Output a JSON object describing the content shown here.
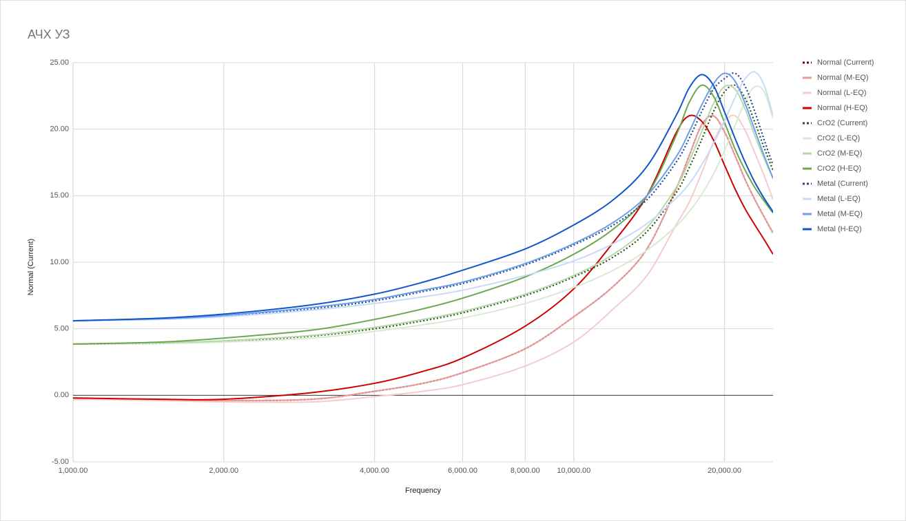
{
  "chart_data": {
    "type": "line",
    "title": "АЧХ УЗ",
    "x_label": "Frequency",
    "y_label": "Normal (Current)",
    "x_scale": "log",
    "xlim": [
      1000,
      25000
    ],
    "ylim": [
      -5,
      25
    ],
    "xticks": [
      {
        "value": 1000,
        "label": "1,000.00"
      },
      {
        "value": 2000,
        "label": "2,000.00"
      },
      {
        "value": 4000,
        "label": "4,000.00"
      },
      {
        "value": 6000,
        "label": "6,000.00"
      },
      {
        "value": 8000,
        "label": "8,000.00"
      },
      {
        "value": 10000,
        "label": "10,000.00"
      },
      {
        "value": 20000,
        "label": "20,000.00"
      }
    ],
    "yticks": [
      {
        "value": -5,
        "label": "-5.00"
      },
      {
        "value": 0,
        "label": "0.00"
      },
      {
        "value": 5,
        "label": "5.00"
      },
      {
        "value": 10,
        "label": "10.00"
      },
      {
        "value": 15,
        "label": "15.00"
      },
      {
        "value": 20,
        "label": "20.00"
      },
      {
        "value": 25,
        "label": "25.00"
      }
    ],
    "grid": true,
    "legend": "right",
    "x": [
      1000,
      1500,
      2000,
      3000,
      4000,
      5000,
      6000,
      8000,
      10000,
      12000,
      14000,
      16000,
      17000,
      18000,
      19000,
      20000,
      21000,
      22000,
      23000,
      24000,
      25000
    ],
    "series": [
      {
        "name": "Normal (Current)",
        "color": "#660000",
        "dash": "dotted",
        "values": [
          -0.3,
          -0.35,
          -0.4,
          -0.3,
          0.3,
          0.9,
          1.7,
          3.5,
          5.9,
          8.2,
          11,
          15.5,
          18,
          20.3,
          21,
          19.8,
          18,
          16.2,
          14.7,
          13.4,
          12.2
        ]
      },
      {
        "name": "Normal (M-EQ)",
        "color": "#ea9999",
        "dash": "solid",
        "values": [
          -0.3,
          -0.35,
          -0.4,
          -0.3,
          0.3,
          0.9,
          1.7,
          3.5,
          5.9,
          8.2,
          11,
          15.5,
          18,
          20.3,
          21,
          19.8,
          18,
          16.2,
          14.7,
          13.4,
          12.2
        ]
      },
      {
        "name": "Normal (L-EQ)",
        "color": "#f4cccc",
        "dash": "solid",
        "values": [
          -0.3,
          -0.4,
          -0.5,
          -0.5,
          -0.1,
          0.3,
          0.8,
          2.2,
          4.0,
          6.5,
          9,
          12.8,
          14.5,
          16.7,
          19,
          20.6,
          21,
          19.9,
          18.2,
          16.5,
          14.7
        ]
      },
      {
        "name": "Normal (H-EQ)",
        "color": "#cc0000",
        "dash": "solid",
        "values": [
          -0.2,
          -0.3,
          -0.3,
          0.2,
          0.9,
          1.8,
          2.8,
          5.2,
          8.0,
          11.5,
          15,
          19.7,
          21,
          20.6,
          19.2,
          17.3,
          15.5,
          14,
          12.8,
          11.7,
          10.6
        ]
      },
      {
        "name": "CrO2 (Current)",
        "color": "#274e13",
        "dash": "dotted",
        "values": [
          3.85,
          3.9,
          4.05,
          4.45,
          5.0,
          5.6,
          6.2,
          7.5,
          8.9,
          10.4,
          12.3,
          15.2,
          17.1,
          19.2,
          21.3,
          22.8,
          23.3,
          22.3,
          20.5,
          18.6,
          16.9
        ]
      },
      {
        "name": "CrO2 (L-EQ)",
        "color": "#d9ead3",
        "dash": "solid",
        "values": [
          3.85,
          3.9,
          4.0,
          4.3,
          4.8,
          5.3,
          5.8,
          6.9,
          8.1,
          9.4,
          10.9,
          12.7,
          13.8,
          15.1,
          16.6,
          18.4,
          20.3,
          22.1,
          23.2,
          22.8,
          20.8
        ]
      },
      {
        "name": "CrO2 (M-EQ)",
        "color": "#b6d7a8",
        "dash": "solid",
        "values": [
          3.85,
          3.95,
          4.1,
          4.5,
          5.1,
          5.7,
          6.3,
          7.6,
          9.0,
          10.6,
          12.6,
          15.6,
          17.6,
          19.8,
          21.9,
          23.2,
          23,
          21.5,
          19.5,
          17.8,
          16.3
        ]
      },
      {
        "name": "CrO2 (H-EQ)",
        "color": "#6aa84f",
        "dash": "solid",
        "values": [
          3.85,
          4.0,
          4.3,
          4.9,
          5.7,
          6.5,
          7.3,
          8.9,
          10.6,
          12.5,
          15,
          19.5,
          22,
          23.3,
          22.5,
          20.5,
          18.5,
          16.9,
          15.6,
          14.6,
          13.7
        ]
      },
      {
        "name": "Metal (Current)",
        "color": "#1c4587",
        "dash": "dotted",
        "values": [
          5.6,
          5.75,
          5.95,
          6.5,
          7.1,
          7.8,
          8.4,
          9.8,
          11.3,
          12.8,
          14.7,
          17.5,
          19.3,
          21.3,
          23,
          23.8,
          24.2,
          23.2,
          21.3,
          19.2,
          17.3
        ]
      },
      {
        "name": "Metal (L-EQ)",
        "color": "#c9daf8",
        "dash": "solid",
        "values": [
          5.6,
          5.7,
          5.9,
          6.4,
          6.9,
          7.4,
          7.9,
          9,
          10.1,
          11.4,
          12.9,
          14.8,
          15.9,
          17.3,
          18.9,
          20.6,
          22.4,
          23.8,
          24.3,
          23.3,
          21
        ]
      },
      {
        "name": "Metal (M-EQ)",
        "color": "#6d9eeb",
        "dash": "solid",
        "values": [
          5.6,
          5.75,
          6.0,
          6.6,
          7.2,
          7.9,
          8.5,
          9.9,
          11.4,
          13,
          15,
          17.9,
          19.8,
          21.8,
          23.4,
          24.2,
          23.6,
          21.9,
          19.9,
          18,
          16.3
        ]
      },
      {
        "name": "Metal (H-EQ)",
        "color": "#1155cc",
        "dash": "solid",
        "values": [
          5.6,
          5.8,
          6.1,
          6.8,
          7.6,
          8.5,
          9.4,
          11,
          12.8,
          14.7,
          17.2,
          21,
          23.1,
          24.1,
          23.3,
          21.3,
          19.3,
          17.5,
          16,
          14.8,
          13.8
        ]
      }
    ]
  }
}
